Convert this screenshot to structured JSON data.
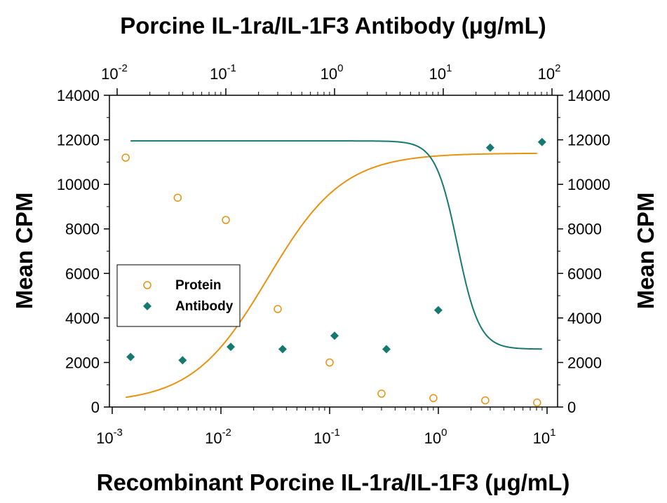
{
  "chart_data": {
    "type": "scatter",
    "top_axis_title": "Porcine IL-1ra/IL-1F3 Antibody (μg/mL)",
    "bottom_axis_title": "Recombinant Porcine IL-1ra/IL-1F3 (μg/mL)",
    "left_axis_title": "Mean CPM",
    "right_axis_title": "Mean CPM",
    "bottom_axis": {
      "scale": "log",
      "range": [
        0.001,
        10
      ],
      "tick_exponents": [
        "-3",
        "-2",
        "-1",
        "0",
        "1"
      ]
    },
    "top_axis": {
      "scale": "log",
      "range": [
        0.01,
        100
      ],
      "tick_exponents": [
        "-2",
        "-1",
        "0",
        "1",
        "2"
      ]
    },
    "y_axis": {
      "range": [
        0,
        14000
      ],
      "ticks": [
        "0",
        "2000",
        "4000",
        "6000",
        "8000",
        "10000",
        "12000",
        "14000"
      ]
    },
    "grid": false,
    "legend": {
      "placement": "middle-left"
    },
    "series": [
      {
        "name": "Protein",
        "axis": "bottom",
        "marker": "open-circle",
        "color": "#E8920F",
        "x": [
          0.00133,
          0.004,
          0.0111,
          0.0333,
          0.1,
          0.3,
          0.9,
          2.7,
          8.1
        ],
        "y": [
          11200,
          9400,
          8400,
          4400,
          2000,
          600,
          400,
          300,
          200
        ],
        "fit": {
          "model": "4PL",
          "top": 11400,
          "bottom": 180,
          "ec50": 0.027,
          "hill": -1.25
        }
      },
      {
        "name": "Antibody",
        "axis": "top",
        "marker": "filled-diamond",
        "color": "#147A70",
        "x": [
          0.0133,
          0.04,
          0.111,
          0.333,
          1.0,
          3.0,
          9.0,
          27.0,
          81.0
        ],
        "y": [
          2250,
          2100,
          2700,
          2600,
          3200,
          2600,
          4350,
          11650,
          11900
        ],
        "fit": {
          "model": "4PL",
          "top": 11950,
          "bottom": 2600,
          "ec50": 13.5,
          "hill": 4.3
        }
      }
    ]
  }
}
